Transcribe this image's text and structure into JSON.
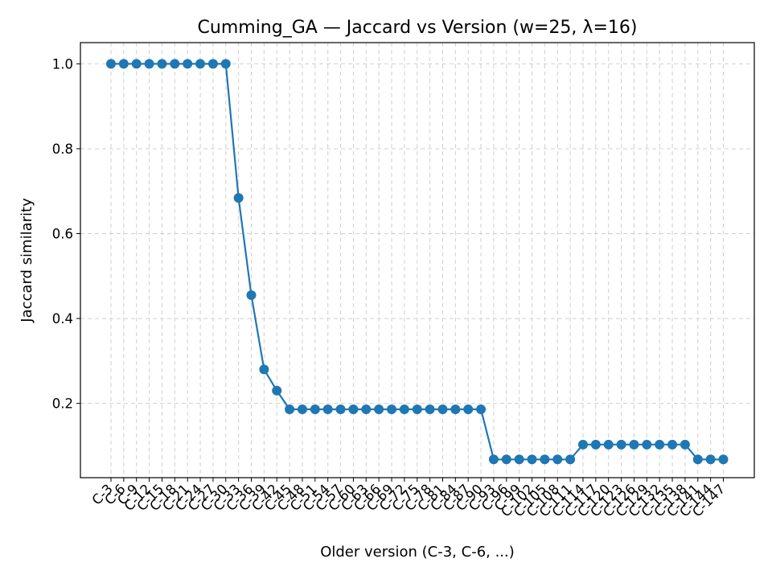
{
  "chart_data": {
    "type": "line",
    "title": "Cumming_GA — Jaccard vs Version (w=25, λ=16)",
    "xlabel": "Older version (C-3, C-6, ...)",
    "ylabel": "Jaccard similarity",
    "ylim": [
      0.025,
      1.05
    ],
    "yticks": [
      "0.2",
      "0.4",
      "0.6",
      "0.8",
      "1.0"
    ],
    "grid": true,
    "line_color": "#1f77b4",
    "categories": [
      "C-3",
      "C-6",
      "C-9",
      "C-12",
      "C-15",
      "C-18",
      "C-21",
      "C-24",
      "C-27",
      "C-30",
      "C-33",
      "C-36",
      "C-39",
      "C-42",
      "C-45",
      "C-48",
      "C-51",
      "C-54",
      "C-57",
      "C-60",
      "C-63",
      "C-66",
      "C-69",
      "C-72",
      "C-75",
      "C-78",
      "C-81",
      "C-84",
      "C-87",
      "C-90",
      "C-93",
      "C-96",
      "C-99",
      "C-102",
      "C-105",
      "C-108",
      "C-111",
      "C-114",
      "C-117",
      "C-120",
      "C-123",
      "C-126",
      "C-129",
      "C-132",
      "C-135",
      "C-138",
      "C-141",
      "C-144",
      "C-147"
    ],
    "series": [
      {
        "values": [
          1.0,
          1.0,
          1.0,
          1.0,
          1.0,
          1.0,
          1.0,
          1.0,
          1.0,
          1.0,
          0.684,
          0.455,
          0.28,
          0.23,
          0.186,
          0.186,
          0.186,
          0.186,
          0.186,
          0.186,
          0.186,
          0.186,
          0.186,
          0.186,
          0.186,
          0.186,
          0.186,
          0.186,
          0.186,
          0.186,
          0.068,
          0.068,
          0.068,
          0.068,
          0.068,
          0.068,
          0.068,
          0.103,
          0.103,
          0.103,
          0.103,
          0.103,
          0.103,
          0.103,
          0.103,
          0.103,
          0.068,
          0.068,
          0.068
        ]
      }
    ]
  }
}
